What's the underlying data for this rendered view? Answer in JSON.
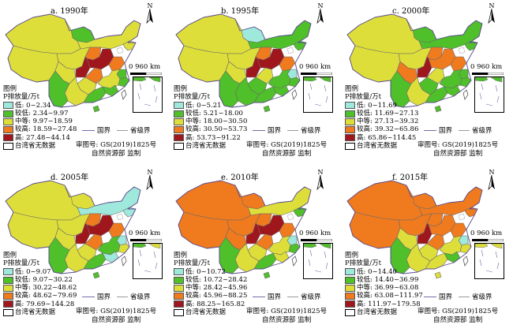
{
  "panels": [
    {
      "id": "a",
      "title": "a. 1990年",
      "legend_title": "图例",
      "unit_label": "P排放量/万t",
      "classes": [
        {
          "label": "低: 0~2.34",
          "color": "#9fe8dc"
        },
        {
          "label": "较低: 2.34~9.97",
          "color": "#4fbf2a"
        },
        {
          "label": "中等: 9.97~18.59",
          "color": "#dede3a"
        },
        {
          "label": "较高: 18.59~27.48",
          "color": "#f07a1e"
        },
        {
          "label": "高: 27.48~44.14",
          "color": "#a0161d"
        }
      ],
      "region_classes": [
        1,
        2,
        2,
        2,
        2,
        2,
        2,
        3,
        4,
        4,
        3,
        3,
        1,
        2,
        2,
        2,
        1,
        1,
        1,
        1
      ]
    },
    {
      "id": "b",
      "title": "b. 1995年",
      "legend_title": "图例",
      "unit_label": "P排放量/万t",
      "classes": [
        {
          "label": "低: 0~5.21",
          "color": "#9fe8dc"
        },
        {
          "label": "较低: 5.21~18.00",
          "color": "#4fbf2a"
        },
        {
          "label": "中等: 18.00~30.50",
          "color": "#dede3a"
        },
        {
          "label": "较高: 30.50~53.73",
          "color": "#f07a1e"
        },
        {
          "label": "高: 53.73~91.22",
          "color": "#a0161d"
        }
      ],
      "region_classes": [
        0,
        1,
        1,
        2,
        2,
        2,
        2,
        3,
        4,
        4,
        3,
        2,
        0,
        1,
        1,
        1,
        1,
        1,
        1,
        1
      ]
    },
    {
      "id": "c",
      "title": "c. 2000年",
      "legend_title": "图例",
      "unit_label": "P排放量/万t",
      "classes": [
        {
          "label": "低: 0~11.69",
          "color": "#9fe8dc"
        },
        {
          "label": "较低: 11.69~27.13",
          "color": "#4fbf2a"
        },
        {
          "label": "中等: 27.13~39.32",
          "color": "#dede3a"
        },
        {
          "label": "较高: 39.32~65.86",
          "color": "#f07a1e"
        },
        {
          "label": "高: 65.86~114.45",
          "color": "#a0161d"
        }
      ],
      "region_classes": [
        1,
        1,
        1,
        2,
        2,
        2,
        3,
        3,
        4,
        3,
        3,
        2,
        1,
        1,
        1,
        2,
        1,
        1,
        1,
        1
      ]
    },
    {
      "id": "d",
      "title": "d. 2005年",
      "legend_title": "图例",
      "unit_label": "P排放量/万t",
      "classes": [
        {
          "label": "低: 0~9.07",
          "color": "#9fe8dc"
        },
        {
          "label": "较低: 9.07~30.22",
          "color": "#4fbf2a"
        },
        {
          "label": "中等: 30.22~48.62",
          "color": "#dede3a"
        },
        {
          "label": "较高: 48.62~79.69",
          "color": "#f07a1e"
        },
        {
          "label": "高: 79.69~144.28",
          "color": "#a0161d"
        }
      ],
      "region_classes": [
        2,
        0,
        0,
        2,
        2,
        2,
        2,
        3,
        4,
        4,
        3,
        3,
        0,
        1,
        2,
        2,
        1,
        1,
        0,
        2
      ]
    },
    {
      "id": "e",
      "title": "e. 2010年",
      "legend_title": "图例",
      "unit_label": "P排放量/万t",
      "classes": [
        {
          "label": "低: 0~10.72",
          "color": "#9fe8dc"
        },
        {
          "label": "较低: 10.72~28.42",
          "color": "#4fbf2a"
        },
        {
          "label": "中等: 28.42~45.96",
          "color": "#dede3a"
        },
        {
          "label": "较高: 45.96~88.25",
          "color": "#f07a1e"
        },
        {
          "label": "高: 88.25~165.82",
          "color": "#a0161d"
        }
      ],
      "region_classes": [
        3,
        2,
        1,
        3,
        3,
        3,
        3,
        3,
        4,
        4,
        3,
        3,
        0,
        2,
        2,
        2,
        1,
        1,
        2,
        1
      ]
    },
    {
      "id": "f",
      "title": "f. 2015年",
      "legend_title": "图例",
      "unit_label": "P排放量/万t",
      "classes": [
        {
          "label": "低: 0~14.40",
          "color": "#9fe8dc"
        },
        {
          "label": "较低: 14.40~36.99",
          "color": "#4fbf2a"
        },
        {
          "label": "中等: 36.99~63.08",
          "color": "#dede3a"
        },
        {
          "label": "较高: 63.08~111.97",
          "color": "#f07a1e"
        },
        {
          "label": "高: 111.97~179.58",
          "color": "#a0161d"
        }
      ],
      "region_classes": [
        3,
        3,
        3,
        3,
        3,
        3,
        2,
        3,
        4,
        3,
        3,
        3,
        0,
        2,
        2,
        2,
        1,
        2,
        1,
        2
      ]
    }
  ],
  "no_data_label": "台湾省无数据",
  "boundary_national": "国界",
  "boundary_provincial": "省级界",
  "scale_label": "0 960 km",
  "north_label": "N",
  "credit_line1": "审图号: GS(2019)1825号",
  "credit_line2": "自然资源部 监制"
}
